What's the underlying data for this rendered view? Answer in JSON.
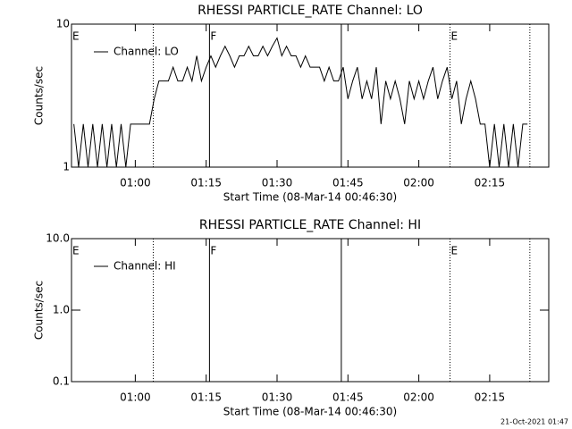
{
  "chart_data": [
    {
      "type": "line",
      "title": "RHESSI PARTICLE_RATE Channel: LO",
      "xlabel": "Start Time (08-Mar-14 00:46:30)",
      "ylabel": "Counts/sec",
      "xlim": [
        46.5,
        147.5
      ],
      "xticks": [
        {
          "value": 60,
          "label": "01:00"
        },
        {
          "value": 75,
          "label": "01:15"
        },
        {
          "value": 90,
          "label": "01:30"
        },
        {
          "value": 105,
          "label": "01:45"
        },
        {
          "value": 120,
          "label": "02:00"
        },
        {
          "value": 135,
          "label": "02:15"
        }
      ],
      "ylim": [
        1,
        10
      ],
      "yticks": [
        1,
        10
      ],
      "log_y": true,
      "x": [
        47,
        48,
        49,
        50,
        51,
        52,
        53,
        54,
        55,
        56,
        57,
        58,
        59,
        60,
        61,
        62,
        63,
        64,
        65,
        66,
        67,
        68,
        69,
        70,
        71,
        72,
        73,
        74,
        75,
        76,
        77,
        78,
        79,
        80,
        81,
        82,
        83,
        84,
        85,
        86,
        87,
        88,
        89,
        90,
        91,
        92,
        93,
        94,
        95,
        96,
        97,
        98,
        99,
        100,
        101,
        102,
        103,
        104,
        105,
        106,
        107,
        108,
        109,
        110,
        111,
        112,
        113,
        114,
        115,
        116,
        117,
        118,
        119,
        120,
        121,
        122,
        123,
        124,
        125,
        126,
        127,
        128,
        129,
        130,
        131,
        132,
        133,
        134,
        135,
        136,
        137,
        138,
        139,
        140,
        141,
        142,
        143
      ],
      "series": [
        {
          "name": "Channel: LO",
          "color": "#000000",
          "values": [
            2,
            1,
            2,
            1,
            2,
            1,
            2,
            1,
            2,
            1,
            2,
            1,
            2,
            2,
            2,
            2,
            2,
            3,
            4,
            4,
            4,
            5,
            4,
            4,
            5,
            4,
            6,
            4,
            5,
            6,
            5,
            6,
            7,
            6,
            5,
            6,
            6,
            7,
            6,
            6,
            7,
            6,
            7,
            8,
            6,
            7,
            6,
            6,
            5,
            6,
            5,
            5,
            5,
            4,
            5,
            4,
            4,
            5,
            3,
            4,
            5,
            3,
            4,
            3,
            5,
            2,
            4,
            3,
            4,
            3,
            2,
            4,
            3,
            4,
            3,
            4,
            5,
            3,
            4,
            5,
            3,
            4,
            2,
            3,
            4,
            3,
            2,
            2,
            1,
            2,
            1,
            2,
            1,
            2,
            1,
            2,
            2
          ]
        }
      ],
      "vlines": [
        {
          "x": 63.8,
          "style": "dotted"
        },
        {
          "x": 75.7,
          "style": "solid"
        },
        {
          "x": 103.6,
          "style": "solid"
        },
        {
          "x": 126.6,
          "style": "dotted"
        },
        {
          "x": 143.5,
          "style": "dotted"
        }
      ],
      "annotations": [
        {
          "text": "E",
          "x": 46.5
        },
        {
          "text": "F",
          "x": 75.7
        },
        {
          "text": "E",
          "x": 126.6
        }
      ]
    },
    {
      "type": "line",
      "title": "RHESSI PARTICLE_RATE Channel: HI",
      "xlabel": "Start Time (08-Mar-14 00:46:30)",
      "ylabel": "Counts/sec",
      "xlim": [
        46.5,
        147.5
      ],
      "xticks": [
        {
          "value": 60,
          "label": "01:00"
        },
        {
          "value": 75,
          "label": "01:15"
        },
        {
          "value": 90,
          "label": "01:30"
        },
        {
          "value": 105,
          "label": "01:45"
        },
        {
          "value": 120,
          "label": "02:00"
        },
        {
          "value": 135,
          "label": "02:15"
        }
      ],
      "ylim": [
        0.1,
        10
      ],
      "yticks": [
        0.1,
        {
          "value": 1,
          "label": "1.0"
        },
        {
          "value": 10,
          "label": "10.0"
        }
      ],
      "log_y": true,
      "x": [],
      "series": [
        {
          "name": "Channel: HI",
          "color": "#000000",
          "values": []
        }
      ],
      "vlines": [
        {
          "x": 63.8,
          "style": "dotted"
        },
        {
          "x": 75.7,
          "style": "solid"
        },
        {
          "x": 103.6,
          "style": "solid"
        },
        {
          "x": 126.6,
          "style": "dotted"
        },
        {
          "x": 143.5,
          "style": "dotted"
        }
      ],
      "annotations": [
        {
          "text": "E",
          "x": 46.5
        },
        {
          "text": "F",
          "x": 75.7
        },
        {
          "text": "E",
          "x": 126.6
        }
      ]
    }
  ],
  "footer": "21-Oct-2021 01:47"
}
